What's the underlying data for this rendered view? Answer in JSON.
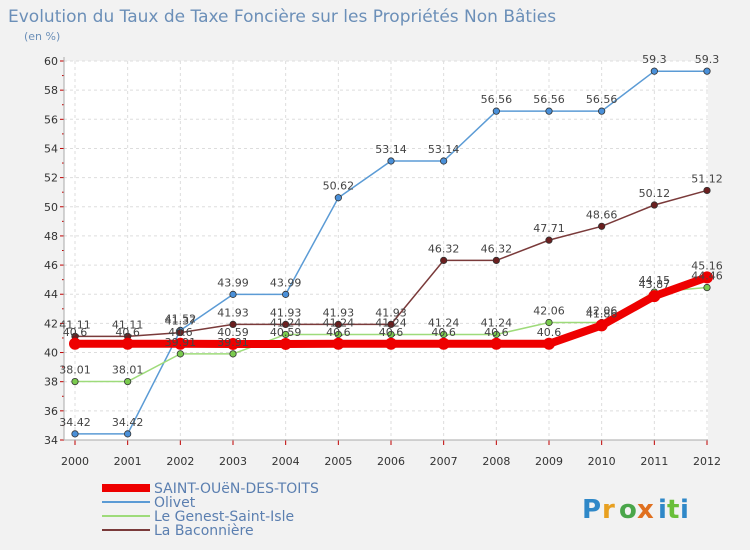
{
  "chart_data": {
    "type": "line",
    "title": "Evolution du Taux de Taxe Foncière sur les Propriétés Non Bâties",
    "ylabel": "(en %)",
    "xlabel": "",
    "ylim": [
      34,
      60
    ],
    "yticks": [
      34,
      36,
      38,
      40,
      42,
      44,
      46,
      48,
      50,
      52,
      54,
      56,
      58,
      60
    ],
    "categories": [
      "2000",
      "2001",
      "2002",
      "2003",
      "2004",
      "2005",
      "2006",
      "2007",
      "2008",
      "2009",
      "2010",
      "2011",
      "2012"
    ],
    "series": [
      {
        "name": "Olivet",
        "color": "#5b9bd5",
        "dot": "#4a90d9",
        "values": [
          34.42,
          34.42,
          41.52,
          43.99,
          43.99,
          50.62,
          53.14,
          53.14,
          56.56,
          56.56,
          56.56,
          59.3,
          59.3
        ],
        "labels": [
          "34.42",
          "34.42",
          "41.52",
          "43.99",
          "43.99",
          "50.62",
          "53.14",
          "53.14",
          "56.56",
          "56.56",
          "56.56",
          "59.3",
          "59.3"
        ]
      },
      {
        "name": "Le Genest-Saint-Isle",
        "color": "#9edb7a",
        "dot": "#7acb4e",
        "values": [
          38.01,
          38.01,
          39.91,
          39.91,
          41.24,
          41.24,
          41.24,
          41.24,
          41.24,
          42.06,
          42.06,
          44.15,
          44.46
        ],
        "labels": [
          "38.01",
          "38.01",
          "39.91",
          "39.91",
          "41.24",
          "41.24",
          "41.24",
          "41.24",
          "41.24",
          "42.06",
          "42.06",
          "44.15",
          "44.46"
        ]
      },
      {
        "name": "La Baconnière",
        "color": "#7a3a3a",
        "dot": "#6b1f1f",
        "values": [
          41.11,
          41.11,
          41.37,
          41.93,
          41.93,
          41.93,
          41.93,
          46.32,
          46.32,
          47.71,
          48.66,
          50.12,
          51.12
        ],
        "labels": [
          "41.11",
          "41.11",
          "41.37",
          "41.93",
          "41.93",
          "41.93",
          "41.93",
          "46.32",
          "46.32",
          "47.71",
          "48.66",
          "50.12",
          "51.12"
        ]
      },
      {
        "name": "SAINT-OUëN-DES-TOITS",
        "color": "#ee0000",
        "dot": "#ee0000",
        "thick": true,
        "values": [
          40.6,
          40.6,
          40.6,
          40.59,
          40.59,
          40.6,
          40.6,
          40.6,
          40.6,
          40.6,
          41.86,
          43.87,
          45.16
        ],
        "labels": [
          "40.6",
          "40.6",
          "40.6",
          "40.59",
          "40.59",
          "40.6",
          "40.6",
          "40.6",
          "40.6",
          "40.6",
          "41.86",
          "43.87",
          "45.16"
        ]
      }
    ],
    "legend": {
      "position": "bottom-left",
      "entries": [
        "SAINT-OUëN-DES-TOITS",
        "Olivet",
        "Le Genest-Saint-Isle",
        "La Baconnière"
      ]
    }
  },
  "logo": {
    "text": "Proxiti",
    "letters": [
      "P",
      "r",
      "o",
      "x",
      "i",
      "t",
      "i"
    ],
    "colors": [
      "#2f88c8",
      "#e8a020",
      "#4aa64a",
      "#e07020",
      "#2f88c8",
      "#6abf3a",
      "#2f88c8"
    ]
  }
}
